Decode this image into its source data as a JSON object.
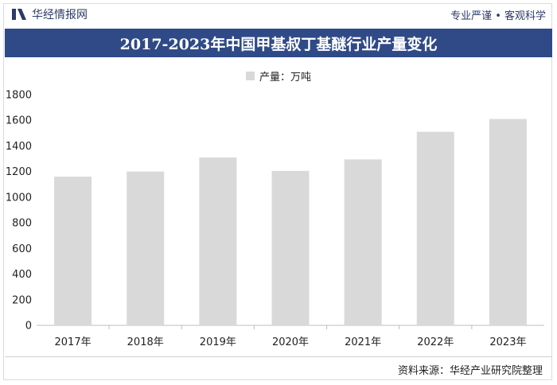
{
  "header": {
    "brand": "华经情报网",
    "slogan": "专业严谨 • 客观科学"
  },
  "footer": {
    "source": "资料来源：华经产业研究院整理"
  },
  "colors": {
    "bar": "#d9d9d9",
    "title_bg": "#2f4a86",
    "brand": "#2b3a67"
  },
  "chart_data": {
    "type": "bar",
    "title": "2017-2023年中国甲基叔丁基醚行业产量变化",
    "legend": "产量：万吨",
    "categories": [
      "2017年",
      "2018年",
      "2019年",
      "2020年",
      "2021年",
      "2022年",
      "2023年"
    ],
    "values": [
      1160,
      1200,
      1310,
      1205,
      1295,
      1510,
      1610
    ],
    "ylim": [
      0,
      1800
    ],
    "yticks": [
      0,
      200,
      400,
      600,
      800,
      1000,
      1200,
      1400,
      1600,
      1800
    ],
    "grid": false
  }
}
